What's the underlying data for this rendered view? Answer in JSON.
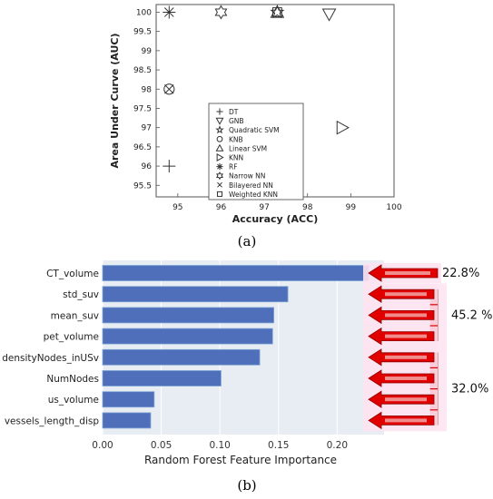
{
  "chart_data": [
    {
      "type": "scatter",
      "panel_label": "(a)",
      "xlabel": "Accuracy (ACC)",
      "ylabel": "Area Under Curve (AUC)",
      "xlim": [
        94.5,
        100
      ],
      "ylim": [
        95.2,
        100.2
      ],
      "x_ticks": [
        "95",
        "96",
        "97",
        "98",
        "99",
        "100"
      ],
      "y_ticks": [
        "95.5",
        "96",
        "96.5",
        "97",
        "97.5",
        "98",
        "98.5",
        "99",
        "99.5",
        "100"
      ],
      "grid": false,
      "legend_position": "bottom-center",
      "series": [
        {
          "name": "DT",
          "marker": "plus",
          "x": 94.8,
          "y": 96.0
        },
        {
          "name": "GNB",
          "marker": "triangle-down",
          "x": 98.5,
          "y": 99.95
        },
        {
          "name": "Quadratic SVM",
          "marker": "pentagram",
          "x": 97.3,
          "y": 100.0
        },
        {
          "name": "KNB",
          "marker": "circle",
          "x": 94.8,
          "y": 98.0
        },
        {
          "name": "Linear SVM",
          "marker": "triangle-up",
          "x": 97.3,
          "y": 100.0
        },
        {
          "name": "KNN",
          "marker": "triangle-right",
          "x": 98.8,
          "y": 97.0
        },
        {
          "name": "RF",
          "marker": "asterisk",
          "x": 94.8,
          "y": 100.0
        },
        {
          "name": "Narrow NN",
          "marker": "hexagram",
          "x": 96.0,
          "y": 100.0
        },
        {
          "name": "Bilayered NN",
          "marker": "x",
          "x": 94.8,
          "y": 98.0
        },
        {
          "name": "Weighted KNN",
          "marker": "square",
          "x": 97.3,
          "y": 100.0
        }
      ]
    },
    {
      "type": "bar",
      "orientation": "horizontal",
      "panel_label": "(b)",
      "xlabel": "Random Forest Feature Importance",
      "xlim": [
        0,
        0.24
      ],
      "x_ticks": [
        "0.00",
        "0.05",
        "0.10",
        "0.15",
        "0.20"
      ],
      "categories": [
        "CT_volume",
        "std_suv",
        "mean_suv",
        "pet_volume",
        "densityNodes_inUSv",
        "NumNodes",
        "us_volume",
        "vessels_length_disp"
      ],
      "values": [
        0.227,
        0.158,
        0.146,
        0.145,
        0.134,
        0.101,
        0.044,
        0.041
      ],
      "bar_color": "#4f6fba",
      "background_color": "#e8ecf3",
      "grid": true,
      "annotations": [
        {
          "text": "22.8%",
          "group": [
            "CT_volume"
          ]
        },
        {
          "text": "45.2 %",
          "group": [
            "std_suv",
            "mean_suv",
            "pet_volume"
          ]
        },
        {
          "text": "32.0%",
          "group": [
            "densityNodes_inUSv",
            "NumNodes",
            "us_volume",
            "vessels_length_disp"
          ]
        }
      ],
      "arrow_color": "#e00000"
    }
  ]
}
